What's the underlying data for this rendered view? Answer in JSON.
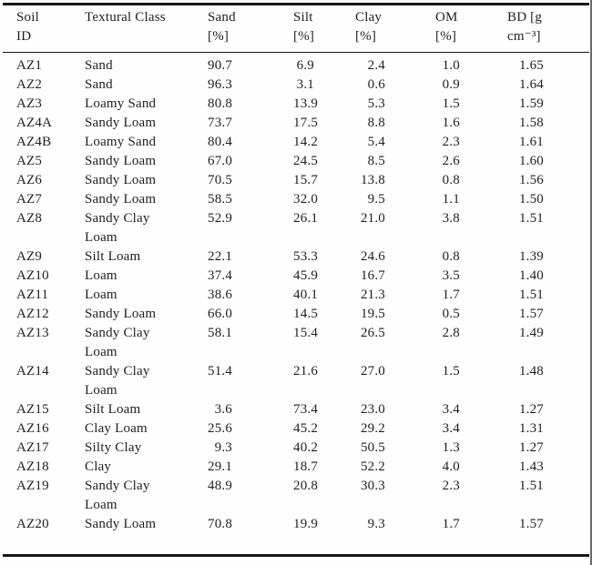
{
  "table": {
    "columns": [
      {
        "key": "id",
        "line1": "Soil",
        "line2": "ID"
      },
      {
        "key": "textural_class",
        "line1": "Textural Class",
        "line2": ""
      },
      {
        "key": "sand",
        "line1": "Sand",
        "line2": "[%]"
      },
      {
        "key": "silt",
        "line1": "Silt",
        "line2": "[%]"
      },
      {
        "key": "clay",
        "line1": "Clay",
        "line2": "[%]"
      },
      {
        "key": "om",
        "line1": "OM",
        "line2": "[%]"
      },
      {
        "key": "bd",
        "line1": "BD [g",
        "line2": "cm⁻³]"
      }
    ],
    "rows": [
      {
        "id": "AZ1",
        "textural_class": "Sand",
        "sand": "90.7",
        "silt": "6.9",
        "clay": "2.4",
        "om": "1.0",
        "bd": "1.65"
      },
      {
        "id": "AZ2",
        "textural_class": "Sand",
        "sand": "96.3",
        "silt": "3.1",
        "clay": "0.6",
        "om": "0.9",
        "bd": "1.64"
      },
      {
        "id": "AZ3",
        "textural_class": "Loamy Sand",
        "sand": "80.8",
        "silt": "13.9",
        "clay": "5.3",
        "om": "1.5",
        "bd": "1.59"
      },
      {
        "id": "AZ4A",
        "textural_class": "Sandy Loam",
        "sand": "73.7",
        "silt": "17.5",
        "clay": "8.8",
        "om": "1.6",
        "bd": "1.58"
      },
      {
        "id": "AZ4B",
        "textural_class": "Loamy Sand",
        "sand": "80.4",
        "silt": "14.2",
        "clay": "5.4",
        "om": "2.3",
        "bd": "1.61"
      },
      {
        "id": "AZ5",
        "textural_class": "Sandy Loam",
        "sand": "67.0",
        "silt": "24.5",
        "clay": "8.5",
        "om": "2.6",
        "bd": "1.60"
      },
      {
        "id": "AZ6",
        "textural_class": "Sandy Loam",
        "sand": "70.5",
        "silt": "15.7",
        "clay": "13.8",
        "om": "0.8",
        "bd": "1.56"
      },
      {
        "id": "AZ7",
        "textural_class": "Sandy Loam",
        "sand": "58.5",
        "silt": "32.0",
        "clay": "9.5",
        "om": "1.1",
        "bd": "1.50"
      },
      {
        "id": "AZ8",
        "textural_class": "Sandy Clay Loam",
        "sand": "52.9",
        "silt": "26.1",
        "clay": "21.0",
        "om": "3.8",
        "bd": "1.51"
      },
      {
        "id": "AZ9",
        "textural_class": "Silt Loam",
        "sand": "22.1",
        "silt": "53.3",
        "clay": "24.6",
        "om": "0.8",
        "bd": "1.39"
      },
      {
        "id": "AZ10",
        "textural_class": "Loam",
        "sand": "37.4",
        "silt": "45.9",
        "clay": "16.7",
        "om": "3.5",
        "bd": "1.40"
      },
      {
        "id": "AZ11",
        "textural_class": "Loam",
        "sand": "38.6",
        "silt": "40.1",
        "clay": "21.3",
        "om": "1.7",
        "bd": "1.51"
      },
      {
        "id": "AZ12",
        "textural_class": "Sandy Loam",
        "sand": "66.0",
        "silt": "14.5",
        "clay": "19.5",
        "om": "0.5",
        "bd": "1.57"
      },
      {
        "id": "AZ13",
        "textural_class": "Sandy Clay Loam",
        "sand": "58.1",
        "silt": "15.4",
        "clay": "26.5",
        "om": "2.8",
        "bd": "1.49"
      },
      {
        "id": "AZ14",
        "textural_class": "Sandy Clay Loam",
        "sand": "51.4",
        "silt": "21.6",
        "clay": "27.0",
        "om": "1.5",
        "bd": "1.48"
      },
      {
        "id": "AZ15",
        "textural_class": "Silt Loam",
        "sand": "3.6",
        "silt": "73.4",
        "clay": "23.0",
        "om": "3.4",
        "bd": "1.27"
      },
      {
        "id": "AZ16",
        "textural_class": "Clay Loam",
        "sand": "25.6",
        "silt": "45.2",
        "clay": "29.2",
        "om": "3.4",
        "bd": "1.31"
      },
      {
        "id": "AZ17",
        "textural_class": "Silty Clay",
        "sand": "9.3",
        "silt": "40.2",
        "clay": "50.5",
        "om": "1.3",
        "bd": "1.27"
      },
      {
        "id": "AZ18",
        "textural_class": "Clay",
        "sand": "29.1",
        "silt": "18.7",
        "clay": "52.2",
        "om": "4.0",
        "bd": "1.43"
      },
      {
        "id": "AZ19",
        "textural_class": "Sandy Clay Loam",
        "sand": "48.9",
        "silt": "20.8",
        "clay": "30.3",
        "om": "2.3",
        "bd": "1.51"
      },
      {
        "id": "AZ20",
        "textural_class": "Sandy Loam",
        "sand": "70.8",
        "silt": "19.9",
        "clay": "9.3",
        "om": "1.7",
        "bd": "1.57"
      }
    ]
  }
}
